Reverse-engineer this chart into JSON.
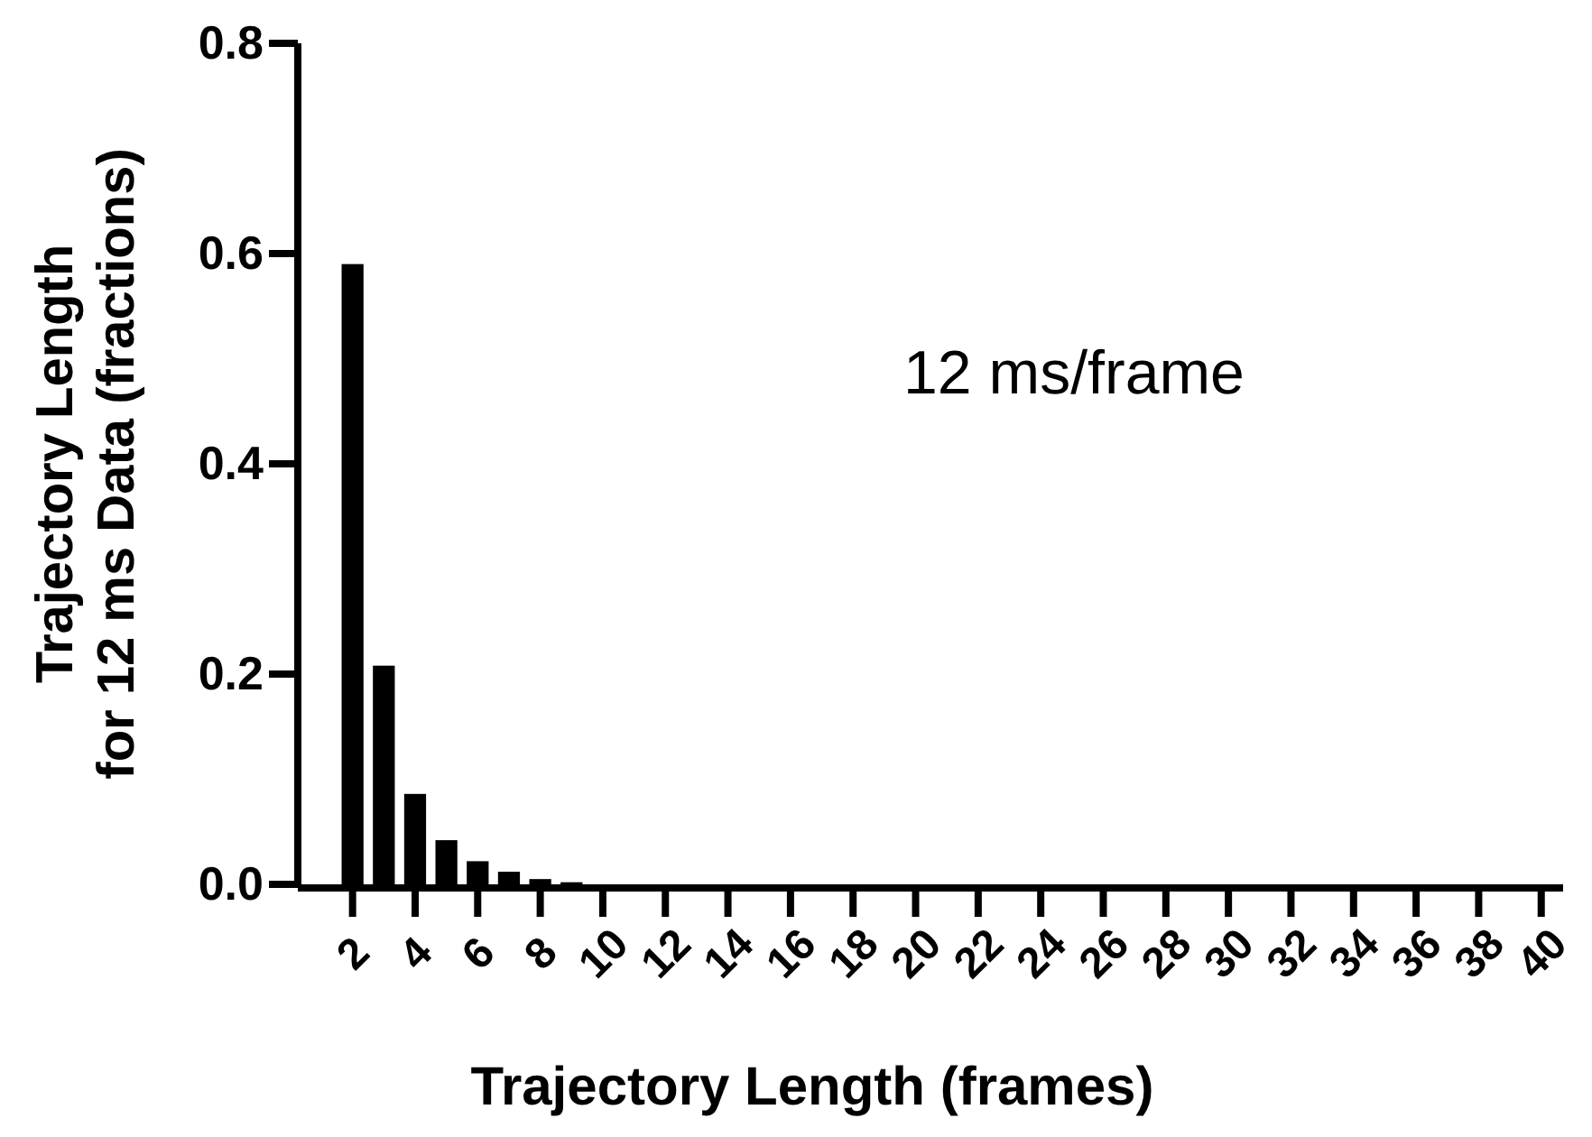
{
  "chart_data": {
    "type": "bar",
    "xlabel": "Trajectory Length (frames)",
    "ylabel": "Trajectory Length\nfor 12 ms Data (fractions)",
    "annotations": [
      "12 ms/frame"
    ],
    "x": [
      2,
      3,
      4,
      5,
      6,
      7,
      8,
      9
    ],
    "values": [
      0.59,
      0.208,
      0.086,
      0.042,
      0.022,
      0.012,
      0.005,
      0.002
    ],
    "color": "#000000",
    "xlim": [
      0.25,
      40.7
    ],
    "xticks": [
      2,
      4,
      6,
      8,
      10,
      12,
      14,
      16,
      18,
      20,
      22,
      24,
      26,
      28,
      30,
      32,
      34,
      36,
      38,
      40
    ],
    "ylim": [
      0,
      0.8
    ],
    "yticks": [
      {
        "value": 0,
        "label": "0.0"
      },
      {
        "value": 0.2,
        "label": "0.2"
      },
      {
        "value": 0.4,
        "label": "0.4"
      },
      {
        "value": 0.6,
        "label": "0.6"
      },
      {
        "value": 0.8,
        "label": "0.8"
      }
    ],
    "grid": false
  }
}
